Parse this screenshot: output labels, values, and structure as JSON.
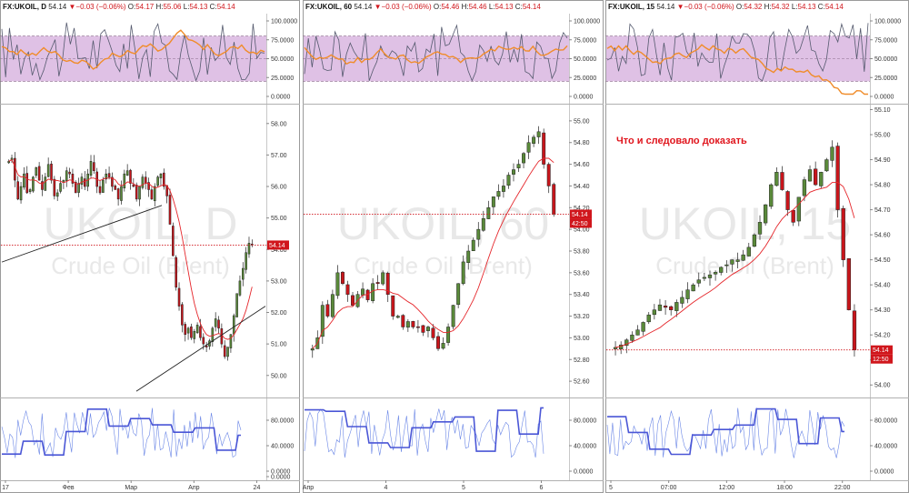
{
  "chart_data": [
    {
      "type": "candlestick",
      "symbol": "FX:UKOIL, D",
      "last": "54.14",
      "change": "−0.03 (−0.06%)",
      "ohlc": {
        "O": "54.17",
        "H": "55.06",
        "L": "54.13",
        "C": "54.14"
      },
      "watermark": "UKOIL, D",
      "watermark_sub": "Crude Oil (Brent)",
      "price_ticks": [
        "58.00",
        "57.00",
        "56.00",
        "55.00",
        "54.00",
        "53.00",
        "52.00",
        "51.00",
        "50.00"
      ],
      "price_ylim": [
        49.3,
        58.6
      ],
      "osc_ticks": [
        "100.0000",
        "75.0000",
        "50.0000",
        "25.0000",
        "0.0000"
      ],
      "bot_ticks": [
        "80.0000",
        "40.0000",
        "0.0000",
        "0.0000"
      ],
      "x_ticks": [
        "17",
        "Фев",
        "Мар",
        "Апр",
        "24"
      ],
      "last_label": "54.14",
      "close": [
        56.8,
        56.9,
        56.2,
        55.6,
        56.0,
        56.4,
        55.8,
        55.9,
        56.3,
        56.6,
        56.2,
        55.9,
        56.3,
        56.7,
        56.2,
        55.7,
        55.8,
        56.1,
        56.2,
        56.5,
        56.4,
        56.1,
        55.8,
        56.1,
        56.3,
        56.0,
        56.4,
        56.8,
        56.5,
        56.0,
        55.8,
        56.2,
        56.4,
        56.3,
        56.0,
        55.9,
        55.6,
        56.0,
        56.4,
        56.5,
        56.1,
        56.0,
        55.6,
        56.0,
        56.3,
        56.1,
        55.9,
        55.6,
        56.0,
        56.3,
        56.4,
        56.0,
        55.7,
        54.8,
        53.8,
        52.8,
        52.2,
        51.6,
        51.3,
        51.5,
        51.2,
        51.4,
        51.6,
        51.2,
        51.0,
        50.9,
        51.1,
        51.5,
        51.8,
        51.5,
        51.0,
        50.6,
        50.9,
        51.3,
        51.9,
        52.6,
        53.0,
        53.4,
        53.9,
        54.2,
        54.14
      ]
    },
    {
      "type": "candlestick",
      "symbol": "FX:UKOIL, 60",
      "last": "54.14",
      "change": "−0.03 (−0.06%)",
      "ohlc": {
        "O": "54.46",
        "H": "54.46",
        "L": "54.13",
        "C": "54.14"
      },
      "watermark": "UKOIL, 60",
      "watermark_sub": "Crude Oil (Brent)",
      "price_ticks": [
        "55.00",
        "54.80",
        "54.60",
        "54.40",
        "54.20",
        "54.00",
        "53.80",
        "53.60",
        "53.40",
        "53.20",
        "53.00",
        "52.80",
        "52.60"
      ],
      "price_ylim": [
        52.45,
        55.15
      ],
      "osc_ticks": [
        "100.0000",
        "75.0000",
        "50.0000",
        "25.0000",
        "0.0000"
      ],
      "bot_ticks": [
        "80.0000",
        "40.0000",
        "0.0000"
      ],
      "x_ticks": [
        "Апр",
        "4",
        "5",
        "6"
      ],
      "last_label": "54.14",
      "last_time": "42:50",
      "close": [
        52.9,
        53.0,
        53.3,
        53.2,
        53.4,
        53.6,
        53.5,
        53.4,
        53.3,
        53.4,
        53.45,
        53.35,
        53.5,
        53.5,
        53.6,
        53.4,
        53.2,
        53.2,
        53.1,
        53.15,
        53.1,
        53.1,
        53.05,
        53.1,
        53.0,
        52.9,
        52.95,
        53.1,
        53.3,
        53.5,
        53.7,
        53.8,
        53.9,
        54.0,
        54.1,
        54.2,
        54.3,
        54.35,
        54.4,
        54.5,
        54.55,
        54.6,
        54.7,
        54.8,
        54.85,
        54.9,
        54.6,
        54.4,
        54.14
      ]
    },
    {
      "type": "candlestick",
      "symbol": "FX:UKOIL, 15",
      "last": "54.14",
      "change": "−0.03 (−0.06%)",
      "ohlc": {
        "O": "54.32",
        "H": "54.32",
        "L": "54.13",
        "C": "54.14"
      },
      "watermark": "UKOIL, 15",
      "watermark_sub": "Crude Oil (Brent)",
      "annotation": "Что и следовало доказать",
      "price_ticks": [
        "55.10",
        "55.00",
        "54.90",
        "54.80",
        "54.70",
        "54.60",
        "54.50",
        "54.40",
        "54.30",
        "54.20",
        "54.10",
        "54.00"
      ],
      "price_ylim": [
        53.95,
        55.12
      ],
      "osc_ticks": [
        "100.0000",
        "75.0000",
        "50.0000",
        "25.0000",
        "0.0000"
      ],
      "bot_ticks": [
        "80.0000",
        "40.0000",
        "0.0000"
      ],
      "x_ticks": [
        "5",
        "07:00",
        "12:00",
        "18:00",
        "22:00"
      ],
      "last_label": "54.14",
      "last_time": "12:50",
      "close": [
        54.15,
        54.16,
        54.18,
        54.2,
        54.22,
        54.25,
        54.28,
        54.3,
        54.32,
        54.31,
        54.3,
        54.33,
        54.35,
        54.38,
        54.4,
        54.42,
        54.43,
        54.44,
        54.45,
        54.47,
        54.48,
        54.5,
        54.5,
        54.52,
        54.55,
        54.6,
        54.65,
        54.72,
        54.8,
        54.85,
        54.78,
        54.7,
        54.65,
        54.75,
        54.82,
        54.86,
        54.8,
        54.85,
        54.9,
        54.95,
        54.7,
        54.5,
        54.3,
        54.14
      ]
    }
  ]
}
